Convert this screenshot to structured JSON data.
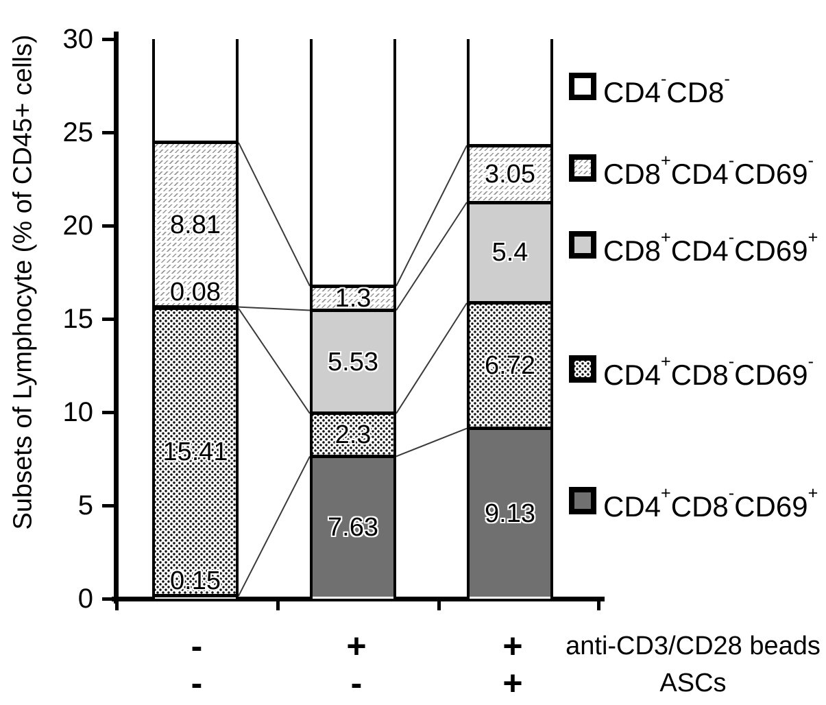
{
  "chart_data": {
    "type": "bar",
    "stacked": true,
    "title": "",
    "xlabel": "",
    "ylabel": "Subsets of Lymphocyte (% of CD45+ cells)",
    "ylim": [
      0,
      30
    ],
    "yticks": [
      0,
      5,
      10,
      15,
      20,
      25,
      30
    ],
    "grid": false,
    "legend_position": "right",
    "bar_count": 3,
    "series_bottom_to_top": [
      {
        "name": "CD4^+CD8^-CD69^+",
        "fill": "darkgray",
        "values": [
          0.15,
          7.63,
          9.13
        ]
      },
      {
        "name": "CD4^+CD8^-CD69^-",
        "fill": "dots",
        "values": [
          15.41,
          2.3,
          6.72
        ]
      },
      {
        "name": "CD8^+CD4^-CD69^+",
        "fill": "lightgray",
        "values": [
          0.08,
          5.53,
          5.4
        ]
      },
      {
        "name": "CD8^+CD4^-CD69^-",
        "fill": "hatch",
        "values": [
          8.81,
          1.3,
          3.05
        ]
      },
      {
        "name": "CD4^-CD8^-",
        "fill": "white",
        "values": null,
        "note": "remainder up to 30"
      }
    ],
    "legend_top_to_bottom": [
      {
        "label": "CD4^-CD8^-",
        "fill": "white"
      },
      {
        "label": "CD8^+CD4^-CD69^-",
        "fill": "hatch"
      },
      {
        "label": "CD8^+CD4^-CD69^+",
        "fill": "lightgray"
      },
      {
        "label": "CD4^+CD8^-CD69^-",
        "fill": "dots"
      },
      {
        "label": "CD4^+CD8^-CD69^+",
        "fill": "darkgray"
      }
    ],
    "x_condition_rows": [
      {
        "label": "anti-CD3/CD28 beads",
        "values": [
          "-",
          "+",
          "+"
        ]
      },
      {
        "label": "ASCs",
        "values": [
          "-",
          "-",
          "+"
        ]
      }
    ],
    "connector_lines": "thin lines join corresponding segment boundaries between adjacent bars",
    "colors": {
      "dark_gray": "#707070",
      "light_gray": "#cecece",
      "outline_black": "#000000",
      "background": "#ffffff"
    }
  }
}
